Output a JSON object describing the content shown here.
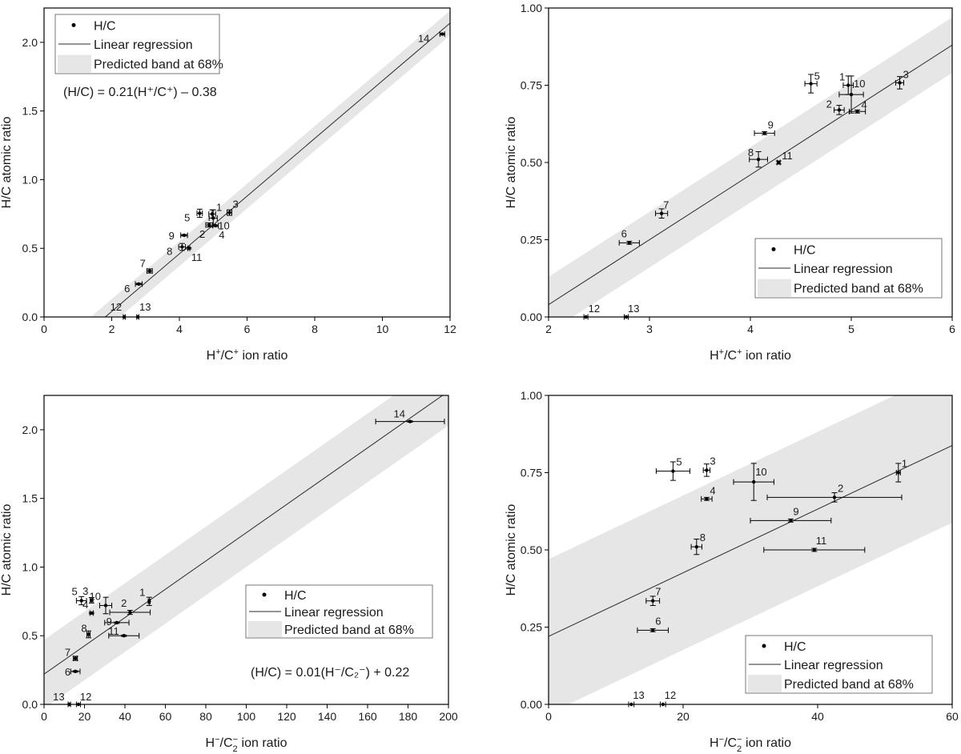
{
  "legend": {
    "points": "H/C",
    "line": "Linear regression",
    "band": "Predicted band at 68%"
  },
  "colors": {
    "axis": "#000000",
    "band": "#e6e6e6",
    "line": "#2b2b2b",
    "point": "#000000"
  },
  "chart_data": [
    {
      "type": "scatter",
      "title": "",
      "xlabel": {
        "base": "H",
        "sup1": "+",
        "mid": "/C",
        "sup2": "+",
        "tail": " ion ratio"
      },
      "ylabel": "H/C atomic ratio",
      "xlim": [
        0,
        12
      ],
      "ylim": [
        0,
        2.25
      ],
      "xticks": [
        0,
        2,
        4,
        6,
        8,
        10,
        12
      ],
      "xtick_labels": [
        "0",
        "2",
        "4",
        "6",
        "8",
        "10",
        "12"
      ],
      "yticks": [
        0,
        0.5,
        1.0,
        1.5,
        2.0
      ],
      "ytick_labels": [
        "0.0",
        "0.5",
        "1.0",
        "1.5",
        "2.0"
      ],
      "regression": {
        "slope": 0.21,
        "intercept": -0.38,
        "band_halfwidth": 0.09
      },
      "equation": "(H/C) = 0.21(H⁺/C⁺) – 0.38",
      "legend_position": "top-left",
      "points": [
        {
          "id": "1",
          "x": 4.97,
          "y": 0.75,
          "xerr": 0.1,
          "yerr": 0.03
        },
        {
          "id": "2",
          "x": 4.88,
          "y": 0.67,
          "xerr": 0.1,
          "yerr": 0.015
        },
        {
          "id": "3",
          "x": 5.48,
          "y": 0.76,
          "xerr": 0.07,
          "yerr": 0.02
        },
        {
          "id": "4",
          "x": 5.07,
          "y": 0.665,
          "xerr": 0.08,
          "yerr": 0.005
        },
        {
          "id": "5",
          "x": 4.6,
          "y": 0.755,
          "xerr": 0.08,
          "yerr": 0.03
        },
        {
          "id": "6",
          "x": 2.8,
          "y": 0.24,
          "xerr": 0.1,
          "yerr": 0.005
        },
        {
          "id": "7",
          "x": 3.12,
          "y": 0.335,
          "xerr": 0.08,
          "yerr": 0.015
        },
        {
          "id": "8",
          "x": 4.08,
          "y": 0.51,
          "xerr": 0.1,
          "yerr": 0.025
        },
        {
          "id": "9",
          "x": 4.14,
          "y": 0.595,
          "xerr": 0.1,
          "yerr": 0.005
        },
        {
          "id": "10",
          "x": 5.0,
          "y": 0.72,
          "xerr": 0.12,
          "yerr": 0.06
        },
        {
          "id": "11",
          "x": 4.28,
          "y": 0.5,
          "xerr": 0.03,
          "yerr": 0.005
        },
        {
          "id": "12",
          "x": 2.37,
          "y": 0.0,
          "xerr": 0.03,
          "yerr": 0
        },
        {
          "id": "13",
          "x": 2.77,
          "y": 0.0,
          "xerr": 0.03,
          "yerr": 0
        },
        {
          "id": "14",
          "x": 11.77,
          "y": 2.06,
          "xerr": 0.07,
          "yerr": 0.005
        }
      ]
    },
    {
      "type": "scatter",
      "title": "",
      "xlabel": {
        "base": "H",
        "sup1": "+",
        "mid": "/C",
        "sup2": "+",
        "tail": " ion ratio"
      },
      "ylabel": "H/C atomic ratio",
      "xlim": [
        2,
        6
      ],
      "ylim": [
        0,
        1.0
      ],
      "xticks": [
        2,
        3,
        4,
        5,
        6
      ],
      "xtick_labels": [
        "2",
        "3",
        "4",
        "5",
        "6"
      ],
      "yticks": [
        0,
        0.25,
        0.5,
        0.75,
        1.0
      ],
      "ytick_labels": [
        "0.00",
        "0.25",
        "0.50",
        "0.75",
        "1.00"
      ],
      "regression": {
        "slope": 0.21,
        "intercept": -0.38,
        "band_halfwidth": 0.09
      },
      "equation": "",
      "legend_position": "bottom-right",
      "points": [
        {
          "id": "1",
          "x": 4.97,
          "y": 0.75,
          "xerr": 0.05,
          "yerr": 0.03
        },
        {
          "id": "2",
          "x": 4.88,
          "y": 0.67,
          "xerr": 0.05,
          "yerr": 0.015
        },
        {
          "id": "3",
          "x": 5.48,
          "y": 0.758,
          "xerr": 0.04,
          "yerr": 0.02
        },
        {
          "id": "4",
          "x": 5.06,
          "y": 0.665,
          "xerr": 0.08,
          "yerr": 0.005
        },
        {
          "id": "5",
          "x": 4.6,
          "y": 0.755,
          "xerr": 0.06,
          "yerr": 0.03
        },
        {
          "id": "6",
          "x": 2.8,
          "y": 0.24,
          "xerr": 0.1,
          "yerr": 0.005
        },
        {
          "id": "7",
          "x": 3.12,
          "y": 0.335,
          "xerr": 0.06,
          "yerr": 0.015
        },
        {
          "id": "8",
          "x": 4.08,
          "y": 0.51,
          "xerr": 0.09,
          "yerr": 0.025
        },
        {
          "id": "9",
          "x": 4.14,
          "y": 0.595,
          "xerr": 0.1,
          "yerr": 0.005
        },
        {
          "id": "10",
          "x": 5.0,
          "y": 0.72,
          "xerr": 0.12,
          "yerr": 0.06
        },
        {
          "id": "11",
          "x": 4.28,
          "y": 0.5,
          "xerr": 0.015,
          "yerr": 0.005
        },
        {
          "id": "12",
          "x": 2.37,
          "y": 0.0,
          "xerr": 0.02,
          "yerr": 0
        },
        {
          "id": "13",
          "x": 2.77,
          "y": 0.0,
          "xerr": 0.02,
          "yerr": 0
        }
      ]
    },
    {
      "type": "scatter",
      "title": "",
      "xlabel": {
        "base": "H",
        "sup1": "−",
        "mid": "/C",
        "sub": "2",
        "sup2": "−",
        "tail": " ion ratio"
      },
      "ylabel": "H/C atomic ratio",
      "xlim": [
        0,
        200
      ],
      "ylim": [
        0,
        2.25
      ],
      "xticks": [
        0,
        20,
        40,
        60,
        80,
        100,
        120,
        140,
        160,
        180,
        200
      ],
      "xtick_labels": [
        "0",
        "20",
        "40",
        "60",
        "80",
        "100",
        "120",
        "140",
        "160",
        "180",
        "200"
      ],
      "yticks": [
        0,
        0.5,
        1.0,
        1.5,
        2.0
      ],
      "ytick_labels": [
        "0.0",
        "0.5",
        "1.0",
        "1.5",
        "2.0"
      ],
      "regression": {
        "slope": 0.0103,
        "intercept": 0.22,
        "band_halfwidth": 0.25
      },
      "equation": "(H/C) = 0.01(H⁻/C₂⁻) + 0.22",
      "legend_position": "right-center",
      "points": [
        {
          "id": "1",
          "x": 52,
          "y": 0.75,
          "xerr": 0.5,
          "yerr": 0.03
        },
        {
          "id": "2",
          "x": 42.5,
          "y": 0.67,
          "xerr": 10,
          "yerr": 0.015
        },
        {
          "id": "3",
          "x": 23.5,
          "y": 0.758,
          "xerr": 0.7,
          "yerr": 0.02
        },
        {
          "id": "4",
          "x": 23.5,
          "y": 0.665,
          "xerr": 0.8,
          "yerr": 0.005
        },
        {
          "id": "5",
          "x": 18.5,
          "y": 0.755,
          "xerr": 2.5,
          "yerr": 0.03
        },
        {
          "id": "6",
          "x": 15.5,
          "y": 0.24,
          "xerr": 2.3,
          "yerr": 0.005
        },
        {
          "id": "7",
          "x": 15.5,
          "y": 0.335,
          "xerr": 1.0,
          "yerr": 0.015
        },
        {
          "id": "8",
          "x": 22,
          "y": 0.51,
          "xerr": 0.8,
          "yerr": 0.025
        },
        {
          "id": "9",
          "x": 36,
          "y": 0.595,
          "xerr": 6,
          "yerr": 0.005
        },
        {
          "id": "10",
          "x": 30.5,
          "y": 0.72,
          "xerr": 3,
          "yerr": 0.06
        },
        {
          "id": "11",
          "x": 39.5,
          "y": 0.5,
          "xerr": 7.5,
          "yerr": 0.005
        },
        {
          "id": "12",
          "x": 17,
          "y": 0.0,
          "xerr": 1,
          "yerr": 0
        },
        {
          "id": "13",
          "x": 12.5,
          "y": 0.0,
          "xerr": 0.6,
          "yerr": 0
        },
        {
          "id": "14",
          "x": 181,
          "y": 2.06,
          "xerr": 17,
          "yerr": 0.005
        }
      ]
    },
    {
      "type": "scatter",
      "title": "",
      "xlabel": {
        "base": "H",
        "sup1": "−",
        "mid": "/C",
        "sub": "2",
        "sup2": "−",
        "tail": " ion ratio"
      },
      "ylabel": "H/C atomic ratio",
      "xlim": [
        0,
        60
      ],
      "ylim": [
        0,
        1.0
      ],
      "xticks": [
        0,
        20,
        40,
        60
      ],
      "xtick_labels": [
        "0",
        "20",
        "40",
        "60"
      ],
      "yticks": [
        0,
        0.25,
        0.5,
        0.75,
        1.0
      ],
      "ytick_labels": [
        "0.00",
        "0.25",
        "0.50",
        "0.75",
        "1.00"
      ],
      "regression": {
        "slope": 0.0103,
        "intercept": 0.22,
        "band_halfwidth": 0.25
      },
      "equation": "",
      "legend_position": "bottom-right",
      "points": [
        {
          "id": "1",
          "x": 52,
          "y": 0.75,
          "xerr": 0.3,
          "yerr": 0.03
        },
        {
          "id": "2",
          "x": 42.5,
          "y": 0.67,
          "xerr": 10,
          "yerr": 0.015
        },
        {
          "id": "3",
          "x": 23.5,
          "y": 0.758,
          "xerr": 0.5,
          "yerr": 0.02
        },
        {
          "id": "4",
          "x": 23.5,
          "y": 0.665,
          "xerr": 0.8,
          "yerr": 0.005
        },
        {
          "id": "5",
          "x": 18.5,
          "y": 0.755,
          "xerr": 2.5,
          "yerr": 0.03
        },
        {
          "id": "6",
          "x": 15.5,
          "y": 0.24,
          "xerr": 2.3,
          "yerr": 0.005
        },
        {
          "id": "7",
          "x": 15.5,
          "y": 0.335,
          "xerr": 1.0,
          "yerr": 0.015
        },
        {
          "id": "8",
          "x": 22,
          "y": 0.51,
          "xerr": 0.8,
          "yerr": 0.025
        },
        {
          "id": "9",
          "x": 36,
          "y": 0.595,
          "xerr": 6,
          "yerr": 0.005
        },
        {
          "id": "10",
          "x": 30.5,
          "y": 0.72,
          "xerr": 3,
          "yerr": 0.06
        },
        {
          "id": "11",
          "x": 39.5,
          "y": 0.5,
          "xerr": 7.5,
          "yerr": 0.005
        },
        {
          "id": "12",
          "x": 17,
          "y": 0.0,
          "xerr": 0.4,
          "yerr": 0
        },
        {
          "id": "13",
          "x": 12.3,
          "y": 0.0,
          "xerr": 0.4,
          "yerr": 0
        }
      ]
    }
  ]
}
